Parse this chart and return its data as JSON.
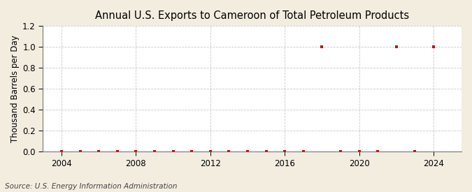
{
  "title": "Annual U.S. Exports to Cameroon of Total Petroleum Products",
  "ylabel": "Thousand Barrels per Day",
  "source_text": "Source: U.S. Energy Information Administration",
  "background_color": "#f3ede0",
  "plot_background_color": "#ffffff",
  "marker_color": "#cc0000",
  "grid_color": "#bbbbbb",
  "years": [
    2004,
    2005,
    2006,
    2007,
    2008,
    2009,
    2010,
    2011,
    2012,
    2013,
    2014,
    2015,
    2016,
    2017,
    2018,
    2019,
    2020,
    2021,
    2022,
    2023,
    2024
  ],
  "values": [
    0,
    0,
    0,
    0,
    0,
    0,
    0,
    0,
    0,
    0,
    0,
    0,
    0,
    0,
    1.0,
    0,
    0,
    0,
    1.0,
    0,
    1.0
  ],
  "xlim": [
    2003.0,
    2025.5
  ],
  "ylim": [
    0.0,
    1.2
  ],
  "yticks": [
    0.0,
    0.2,
    0.4,
    0.6,
    0.8,
    1.0,
    1.2
  ],
  "xticks": [
    2004,
    2008,
    2012,
    2016,
    2020,
    2024
  ],
  "title_fontsize": 10.5,
  "label_fontsize": 8.5,
  "tick_fontsize": 8.5,
  "source_fontsize": 7.5
}
